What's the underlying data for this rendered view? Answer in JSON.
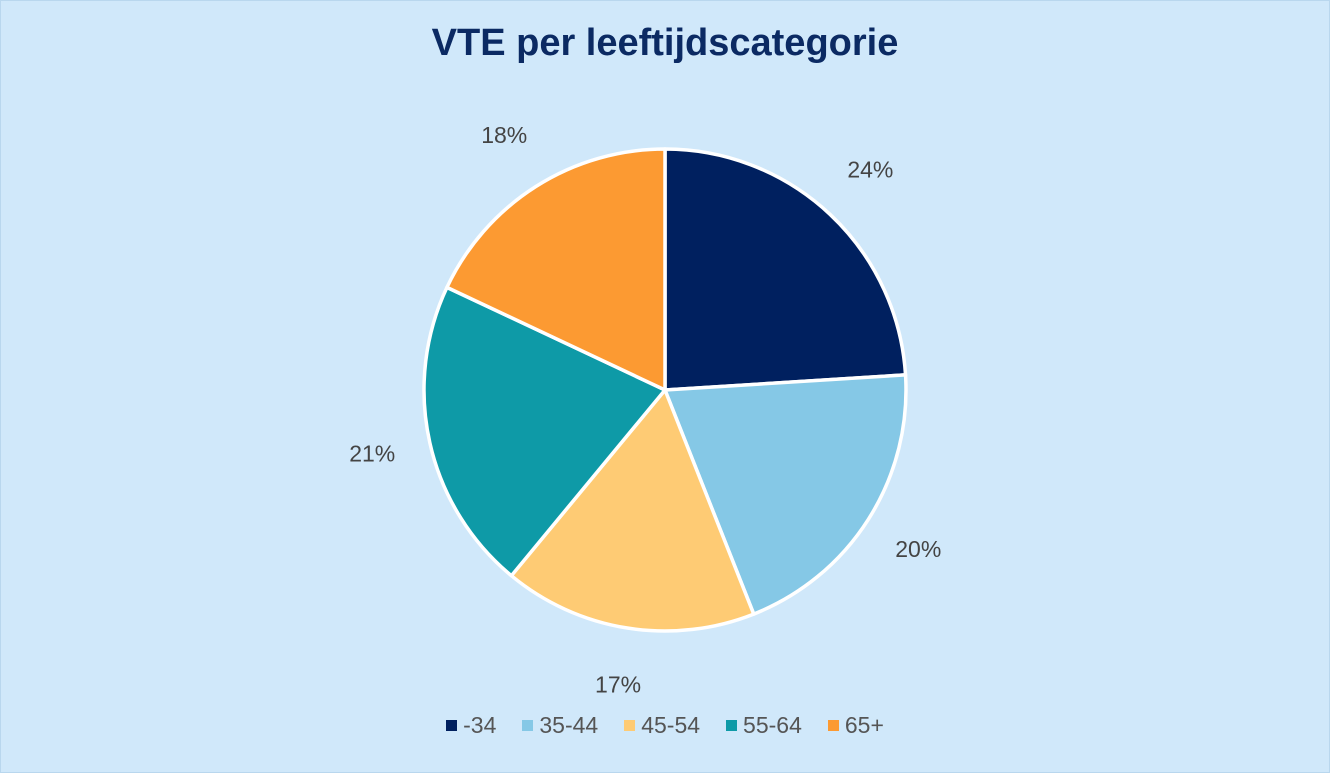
{
  "chart_data": {
    "type": "pie",
    "title": "VTE per leeftijdscategorie",
    "categories": [
      "-34",
      "35-44",
      "45-54",
      "55-64",
      "65+"
    ],
    "values": [
      24,
      20,
      17,
      21,
      18
    ],
    "labels": [
      "24%",
      "20%",
      "17%",
      "21%",
      "18%"
    ],
    "colors": [
      "#00205f",
      "#85c8e6",
      "#fecb74",
      "#0e9aa7",
      "#fc9a32"
    ],
    "legend": "bottom",
    "start_angle": "12 o'clock",
    "direction": "clockwise"
  }
}
